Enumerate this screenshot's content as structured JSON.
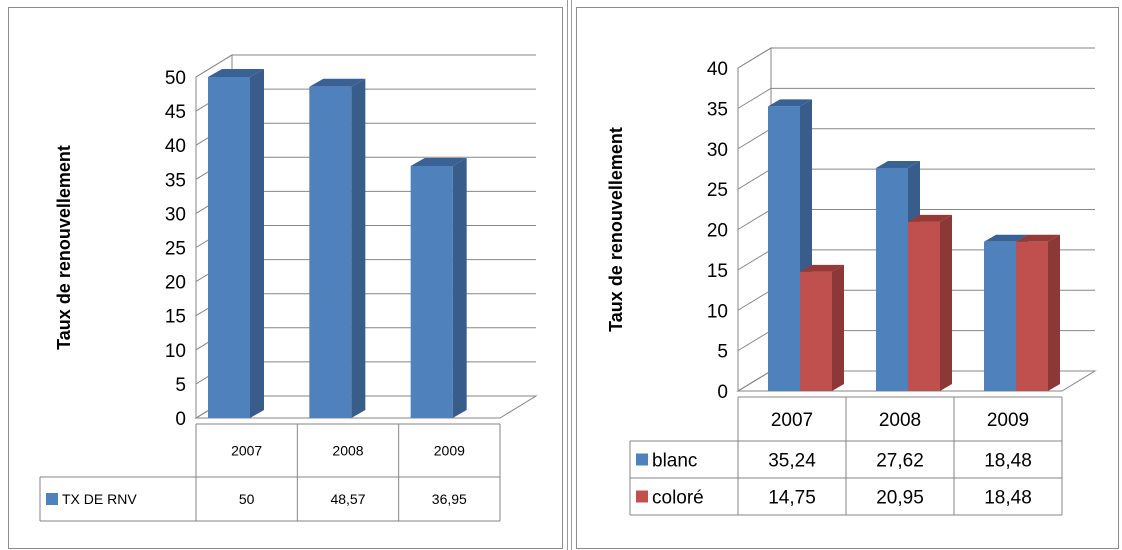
{
  "colors": {
    "blue": "#4F81BD",
    "blue_side": "#385D8A",
    "blue_top": "#3A6193",
    "red": "#C0504D",
    "red_side": "#8C3836",
    "red_top": "#953A37",
    "grid": "#868686",
    "text": "#000000"
  },
  "chart_data": [
    {
      "type": "bar",
      "style": "3d-clustered-column",
      "ylabel": "Taux de renouvellement",
      "ylim": [
        0,
        50
      ],
      "yticks": [
        "0",
        "5",
        "10",
        "15",
        "20",
        "25",
        "30",
        "35",
        "40",
        "45",
        "50"
      ],
      "categories": [
        "2007",
        "2008",
        "2009"
      ],
      "series": [
        {
          "name": "TX DE RNV",
          "color": "blue",
          "values": [
            50,
            48.57,
            36.95
          ],
          "labels": [
            "50",
            "48,57",
            "36,95"
          ]
        }
      ],
      "data_table": true,
      "grid": true
    },
    {
      "type": "bar",
      "style": "3d-clustered-column",
      "ylabel": "Taux de renouvellement",
      "ylim": [
        0,
        40
      ],
      "yticks": [
        "0",
        "5",
        "10",
        "15",
        "20",
        "25",
        "30",
        "35",
        "40"
      ],
      "categories": [
        "2007",
        "2008",
        "2009"
      ],
      "series": [
        {
          "name": "blanc",
          "color": "blue",
          "values": [
            35.24,
            27.62,
            18.48
          ],
          "labels": [
            "35,24",
            "27,62",
            "18,48"
          ]
        },
        {
          "name": "coloré",
          "color": "red",
          "values": [
            14.75,
            20.95,
            18.48
          ],
          "labels": [
            "14,75",
            "20,95",
            "18,48"
          ]
        }
      ],
      "data_table": true,
      "grid": true
    }
  ]
}
